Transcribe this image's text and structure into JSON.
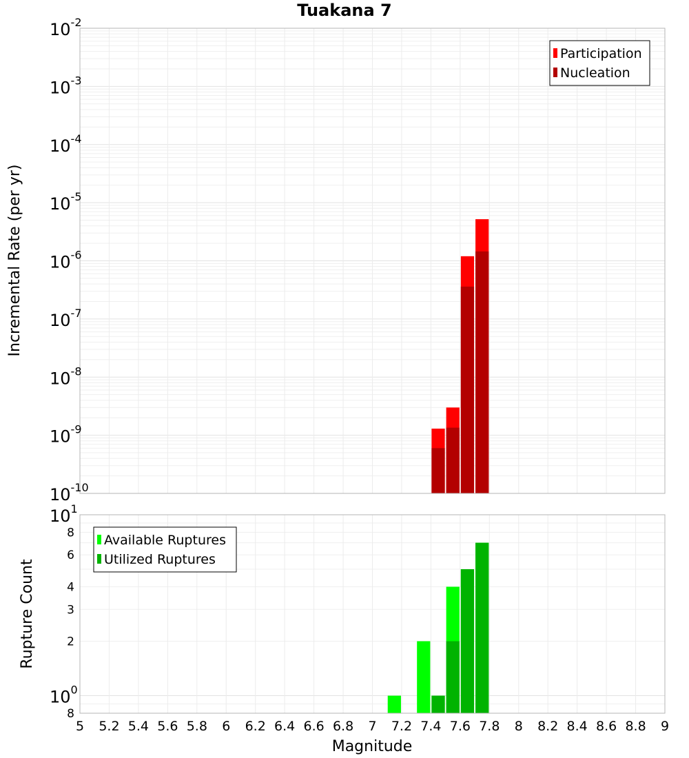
{
  "title": "Tuakana 7",
  "chart_data": [
    {
      "type": "bar",
      "scale": "log",
      "ylabel": "Incremental Rate (per yr)",
      "ylim": [
        1e-10,
        0.01
      ],
      "decades": [
        {
          "mant": "10",
          "exp": "-2",
          "v": 0.01
        },
        {
          "mant": "10",
          "exp": "-3",
          "v": 0.001
        },
        {
          "mant": "10",
          "exp": "-4",
          "v": 0.0001
        },
        {
          "mant": "10",
          "exp": "-5",
          "v": 1e-05
        },
        {
          "mant": "10",
          "exp": "-6",
          "v": 1e-06
        },
        {
          "mant": "10",
          "exp": "-7",
          "v": 1e-07
        },
        {
          "mant": "10",
          "exp": "-8",
          "v": 1e-08
        },
        {
          "mant": "10",
          "exp": "-9",
          "v": 1e-09
        },
        {
          "mant": "10",
          "exp": "-10",
          "v": 1e-10
        }
      ],
      "legend": {
        "position": "top-right",
        "entries": [
          {
            "name": "Participation",
            "color": "#ff0000"
          },
          {
            "name": "Nucleation",
            "color": "#b30000"
          }
        ]
      },
      "series": [
        {
          "name": "Participation",
          "color": "#ff0000",
          "bars": [
            {
              "x": 7.45,
              "v": 1.3e-09
            },
            {
              "x": 7.55,
              "v": 3e-09
            },
            {
              "x": 7.65,
              "v": 1.2e-06
            },
            {
              "x": 7.75,
              "v": 5.2e-06
            }
          ]
        },
        {
          "name": "Nucleation",
          "color": "#b30000",
          "bars": [
            {
              "x": 7.45,
              "v": 6e-10
            },
            {
              "x": 7.55,
              "v": 1.35e-09
            },
            {
              "x": 7.65,
              "v": 3.6e-07
            },
            {
              "x": 7.75,
              "v": 1.45e-06
            }
          ]
        }
      ]
    },
    {
      "type": "bar",
      "scale": "log",
      "ylabel": "Rupture Count",
      "ylim": [
        0.8,
        10
      ],
      "decades": [
        {
          "mant": "10",
          "exp": "1",
          "v": 10
        },
        {
          "mant": "10",
          "exp": "0",
          "v": 1
        }
      ],
      "minor_ticks": [
        {
          "label": "8",
          "v": 8
        },
        {
          "label": "6",
          "v": 6
        },
        {
          "label": "4",
          "v": 4
        },
        {
          "label": "3",
          "v": 3
        },
        {
          "label": "2",
          "v": 2
        },
        {
          "label": "8",
          "v": 0.8
        }
      ],
      "legend": {
        "position": "top-left",
        "entries": [
          {
            "name": "Available Ruptures",
            "color": "#00ff00"
          },
          {
            "name": "Utilized Ruptures",
            "color": "#00b300"
          }
        ]
      },
      "series": [
        {
          "name": "Available Ruptures",
          "color": "#00ff00",
          "bars": [
            {
              "x": 7.15,
              "v": 1
            },
            {
              "x": 7.35,
              "v": 2
            },
            {
              "x": 7.45,
              "v": 1
            },
            {
              "x": 7.55,
              "v": 4
            },
            {
              "x": 7.65,
              "v": 5
            },
            {
              "x": 7.75,
              "v": 7
            }
          ]
        },
        {
          "name": "Utilized Ruptures",
          "color": "#00b300",
          "bars": [
            {
              "x": 7.45,
              "v": 1
            },
            {
              "x": 7.55,
              "v": 2
            },
            {
              "x": 7.65,
              "v": 5
            },
            {
              "x": 7.75,
              "v": 7
            }
          ]
        }
      ]
    }
  ],
  "x_axis": {
    "label": "Magnitude",
    "min": 5,
    "max": 9,
    "ticks": [
      "5",
      "5.2",
      "5.4",
      "5.6",
      "5.8",
      "6",
      "6.2",
      "6.4",
      "6.6",
      "6.8",
      "7",
      "7.2",
      "7.4",
      "7.6",
      "7.8",
      "8",
      "8.2",
      "8.4",
      "8.6",
      "8.8",
      "9"
    ],
    "bar_width": 0.1
  }
}
